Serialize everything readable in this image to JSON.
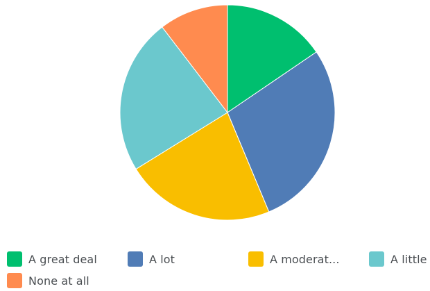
{
  "chart_data": {
    "type": "pie",
    "title": "",
    "legend_position": "bottom",
    "start_angle_deg": 0,
    "direction": "clockwise",
    "slices": [
      {
        "label": "A great deal",
        "value": 15.5,
        "color": "#00bf6f"
      },
      {
        "label": "A lot",
        "value": 28.2,
        "color": "#507cb6"
      },
      {
        "label": "A moderat...",
        "value": 22.5,
        "color": "#f9be00"
      },
      {
        "label": "A little",
        "value": 23.4,
        "color": "#6bc8cd"
      },
      {
        "label": "None at all",
        "value": 10.4,
        "color": "#ff8b4f"
      }
    ]
  }
}
